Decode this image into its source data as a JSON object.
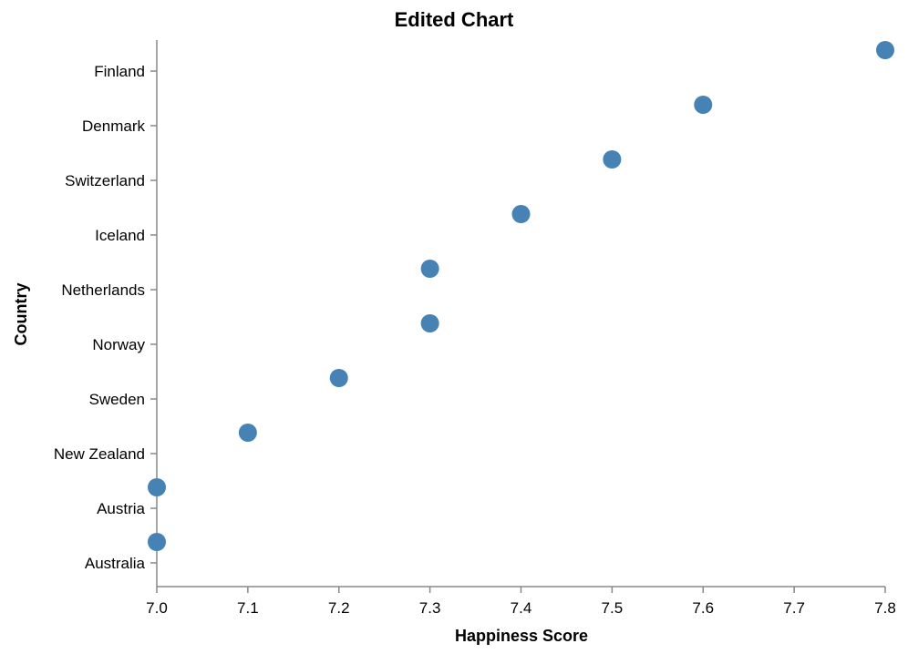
{
  "chart_data": {
    "type": "scatter",
    "title": "Edited Chart",
    "xlabel": "Happiness Score",
    "ylabel": "Country",
    "xlim": [
      7.0,
      7.8
    ],
    "x_ticks": [
      "7.0",
      "7.1",
      "7.2",
      "7.3",
      "7.4",
      "7.5",
      "7.6",
      "7.7",
      "7.8"
    ],
    "categories": [
      "Finland",
      "Denmark",
      "Switzerland",
      "Iceland",
      "Netherlands",
      "Norway",
      "Sweden",
      "New Zealand",
      "Austria",
      "Australia"
    ],
    "values": [
      7.8,
      7.6,
      7.5,
      7.4,
      7.3,
      7.3,
      7.2,
      7.1,
      7.0,
      7.0
    ],
    "grid": false,
    "point_color": "#4682b4"
  }
}
